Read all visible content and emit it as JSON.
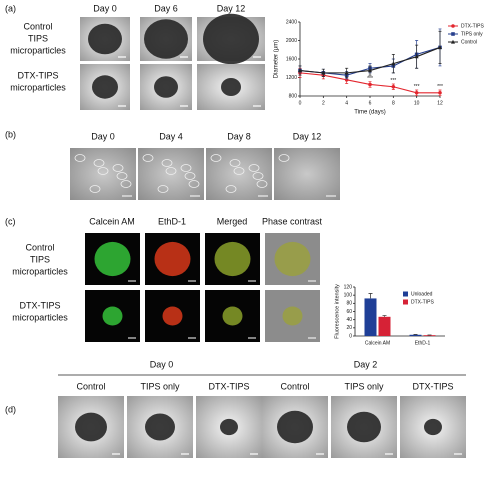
{
  "panels": {
    "a": {
      "label": "(a)",
      "days": [
        "Day 0",
        "Day 6",
        "Day 12"
      ],
      "rows": [
        [
          "Control",
          "TIPS",
          "microparticles"
        ],
        [
          "DTX-TIPS",
          "microparticles"
        ]
      ]
    },
    "b": {
      "label": "(b)",
      "days": [
        "Day 0",
        "Day 4",
        "Day 8",
        "Day 12"
      ]
    },
    "c": {
      "label": "(c)",
      "columns": [
        "Calcein AM",
        "EthD-1",
        "Merged",
        "Phase contrast"
      ],
      "rows": [
        [
          "Control",
          "TIPS",
          "microparticles"
        ],
        [
          "DTX-TIPS",
          "microparticles"
        ]
      ]
    },
    "d": {
      "label": "(d)",
      "groups": [
        {
          "day": "Day 0",
          "columns": [
            "Control",
            "TIPS only",
            "DTX-TIPS"
          ]
        },
        {
          "day": "Day 2",
          "columns": [
            "Control",
            "TIPS only",
            "DTX-TIPS"
          ]
        }
      ]
    }
  },
  "chart_data": [
    {
      "type": "line",
      "x_label": "Time (days)",
      "y_label": "Diameter (μm)",
      "x": [
        0,
        2,
        4,
        6,
        8,
        10,
        12
      ],
      "xlim": [
        0,
        12
      ],
      "xticks": [
        0,
        2,
        4,
        6,
        8,
        10,
        12
      ],
      "ylim": [
        800,
        2400
      ],
      "yticks": [
        800,
        1200,
        1600,
        2000,
        2400
      ],
      "legend": "upper-right",
      "series": [
        {
          "name": "DTX-TIPS",
          "color": "#e3262e",
          "marker": "circle",
          "values": [
            1300,
            1250,
            1150,
            1050,
            1000,
            870,
            870
          ],
          "errors": [
            100,
            80,
            80,
            60,
            60,
            60,
            60
          ],
          "significance_labels": [
            null,
            null,
            null,
            "***",
            "***",
            "***",
            "***"
          ]
        },
        {
          "name": "TIPS only",
          "color": "#263f8e",
          "marker": "square",
          "values": [
            1350,
            1300,
            1250,
            1400,
            1450,
            1700,
            1850
          ],
          "errors": [
            100,
            80,
            80,
            100,
            150,
            300,
            400
          ]
        },
        {
          "name": "Control",
          "color": "#222222",
          "marker": "triangle",
          "values": [
            1350,
            1300,
            1300,
            1350,
            1500,
            1650,
            1850
          ],
          "errors": [
            100,
            80,
            100,
            100,
            200,
            250,
            350
          ]
        }
      ]
    },
    {
      "type": "bar",
      "y_label": "Fluorescence intensity",
      "categories": [
        "Calcein AM",
        "EthD-1"
      ],
      "ylim": [
        0,
        120
      ],
      "yticks": [
        0,
        20,
        40,
        60,
        80,
        100,
        120
      ],
      "legend": "upper-right",
      "series": [
        {
          "name": "Unloaded",
          "color": "#1f3f97",
          "values": [
            92,
            3
          ],
          "errors": [
            12,
            1
          ]
        },
        {
          "name": "DTX-TIPS",
          "color": "#d62236",
          "values": [
            47,
            2
          ],
          "errors": [
            3,
            0.5
          ]
        }
      ]
    }
  ]
}
